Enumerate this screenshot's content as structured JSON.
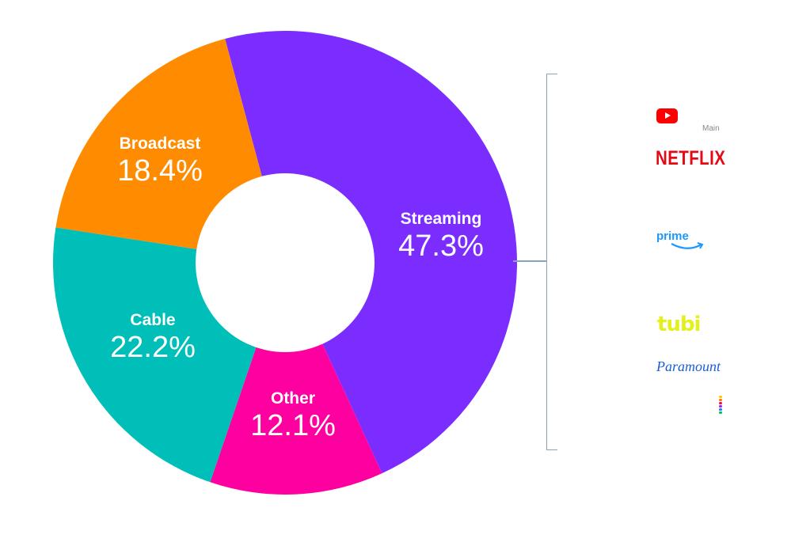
{
  "chart_data": {
    "type": "pie",
    "style": "donut",
    "title": "",
    "slices": [
      {
        "label": "Streaming",
        "value": 47.3,
        "display": "47.3%",
        "color": "#7b2cff"
      },
      {
        "label": "Other",
        "value": 12.1,
        "display": "12.1%",
        "color": "#ff00a0"
      },
      {
        "label": "Cable",
        "value": 22.2,
        "display": "22.2%",
        "color": "#00bfb8"
      },
      {
        "label": "Broadcast",
        "value": 18.4,
        "display": "18.4%",
        "color": "#ff8c00"
      }
    ]
  },
  "streaming_breakdown": {
    "note": "Main",
    "logos": [
      {
        "name": "YouTube",
        "icon": "youtube-play-icon",
        "color": "#ff0000"
      },
      {
        "name": "NETFLIX",
        "color": "#e50914"
      },
      {
        "name": "prime",
        "color": "#1a98ff"
      },
      {
        "name": "tubi",
        "color": "#e3f01c"
      },
      {
        "name": "Paramount",
        "color": "#1b5fd6"
      },
      {
        "name": "Peacock",
        "icon": "peacock-dots-icon"
      }
    ]
  }
}
